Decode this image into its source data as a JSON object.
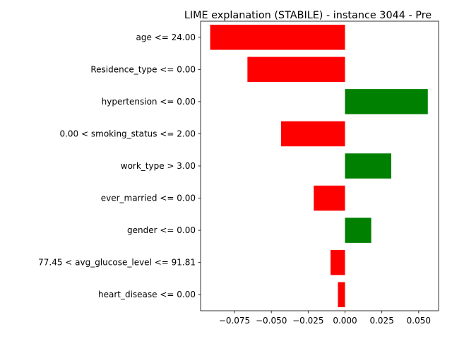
{
  "chart_data": {
    "type": "bar",
    "orientation": "horizontal",
    "title": "LIME explanation (STABILE) - instance 3044 - Pre",
    "xlabel": "",
    "ylabel": "",
    "categories": [
      "age <= 24.00",
      "Residence_type <= 0.00",
      "hypertension <= 0.00",
      "0.00 < smoking_status <= 2.00",
      "work_type > 3.00",
      "ever_married <= 0.00",
      "gender <= 0.00",
      "77.45 < avg_glucose_level <= 91.81",
      "heart_disease <= 0.00"
    ],
    "values": [
      -0.0915,
      -0.0662,
      0.0562,
      -0.0434,
      0.0314,
      -0.0212,
      0.0178,
      -0.0098,
      -0.0048
    ],
    "xlim": [
      -0.098,
      0.0635
    ],
    "xticks": [
      -0.075,
      -0.05,
      -0.025,
      0.0,
      0.025,
      0.05
    ],
    "xtick_labels": [
      "−0.075",
      "−0.050",
      "−0.025",
      "0.000",
      "0.025",
      "0.050"
    ],
    "grid": false,
    "legend": "none",
    "colors": {
      "positive": "#008000",
      "negative": "#ff0000"
    }
  }
}
